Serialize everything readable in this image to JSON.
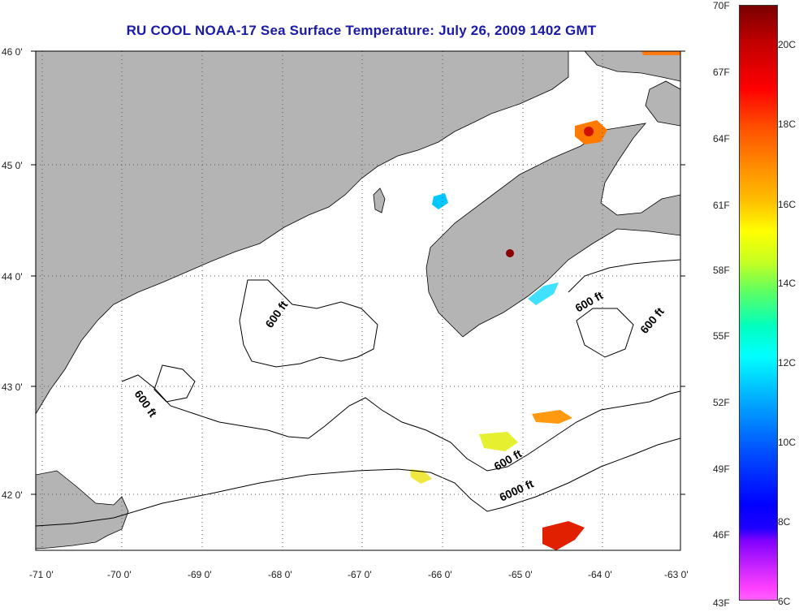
{
  "title": "RU COOL  NOAA-17  Sea Surface Temperature:  July 26, 2009 1402 GMT",
  "lat_labels": [
    "46 0'",
    "45 0'",
    "44 0'",
    "43 0'",
    "42 0'"
  ],
  "lon_labels": [
    "-71 0'",
    "-70 0'",
    "-69 0'",
    "-68 0'",
    "-67 0'",
    "-66 0'",
    "-65 0'",
    "-64 0'",
    "-63 0'"
  ],
  "contour_labels": [
    "600 ft",
    "600 ft",
    "600 ft",
    "600 ft",
    "600 ft",
    "6000 ft"
  ],
  "colorbar": {
    "fahrenheit": [
      "70F",
      "67F",
      "64F",
      "61F",
      "58F",
      "55F",
      "52F",
      "49F",
      "46F",
      "43F"
    ],
    "celsius": [
      "20C",
      "18C",
      "16C",
      "14C",
      "12C",
      "10C",
      "8C",
      "6C"
    ]
  },
  "colors": {
    "land": "#b4b4b4",
    "title": "#1a1aa8"
  }
}
